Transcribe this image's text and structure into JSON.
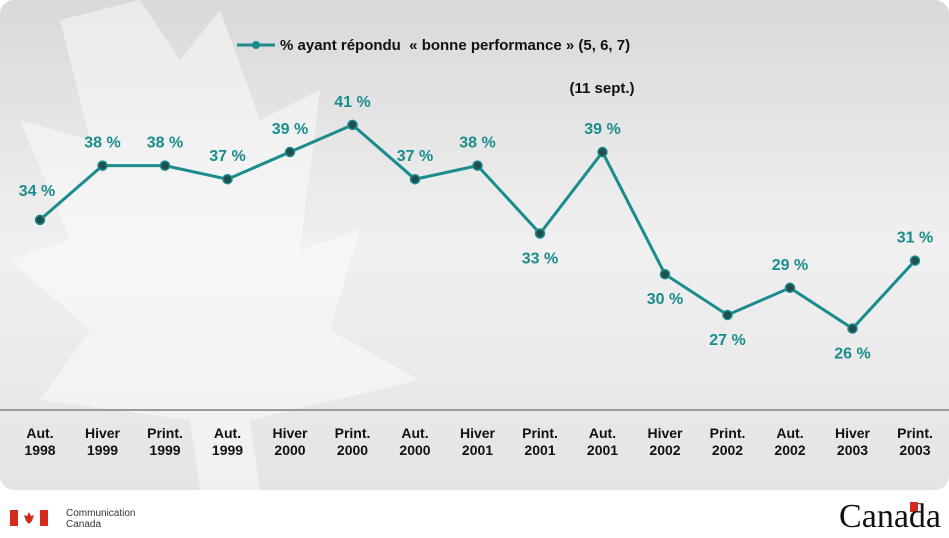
{
  "chart_data": {
    "type": "line",
    "categories": [
      "Aut.\n1998",
      "Hiver\n1999",
      "Print.\n1999",
      "Aut.\n1999",
      "Hiver\n2000",
      "Print.\n2000",
      "Aut.\n2000",
      "Hiver\n2001",
      "Print.\n2001",
      "Aut.\n2001",
      "Hiver\n2002",
      "Print.\n2002",
      "Aut.\n2002",
      "Hiver\n2003",
      "Print.\n2003"
    ],
    "series": [
      {
        "name": "% ayant répondu  « bonne performance » (5, 6, 7)",
        "color": "#1a8c8c",
        "values": [
          34,
          38,
          38,
          37,
          39,
          41,
          37,
          38,
          33,
          39,
          30,
          27,
          29,
          26,
          31
        ],
        "value_labels": [
          "34 %",
          "38 %",
          "38 %",
          "37 %",
          "39 %",
          "41 %",
          "37 %",
          "38 %",
          "33 %",
          "39 %",
          "30 %",
          "27 %",
          "29 %",
          "26 %",
          "31 %"
        ]
      }
    ],
    "annotation": "(11 sept.)",
    "ylim": [
      20,
      46
    ],
    "legend": "top"
  },
  "footer": {
    "department": "Communication\nCanada",
    "wordmark": "Canada"
  }
}
